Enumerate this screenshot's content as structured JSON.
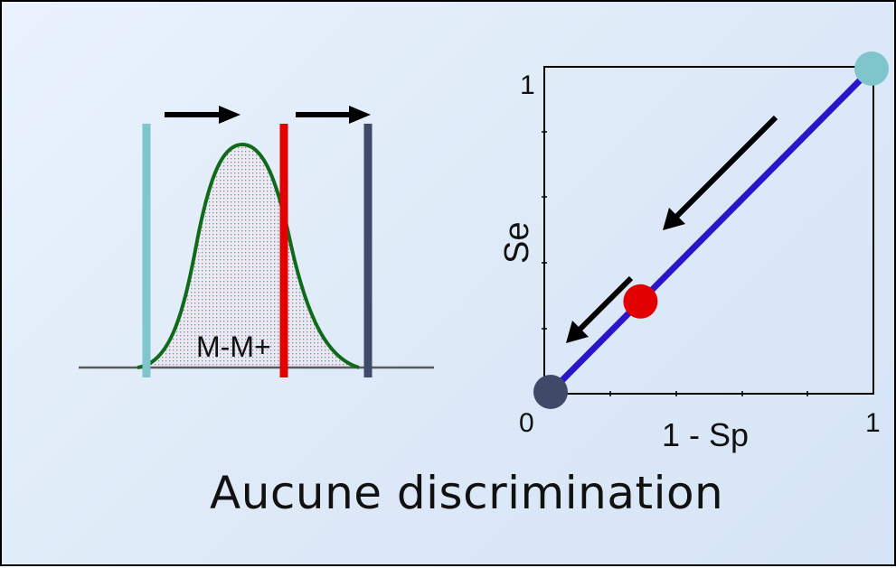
{
  "caption": "Aucune discrimination",
  "distribution": {
    "overlap_label": "M-M+",
    "colors": {
      "curve": "#0f6a1a",
      "fill_dots": "#e06a6a",
      "left_threshold": "#7ec5cc",
      "middle_threshold": "#e30000",
      "right_threshold": "#3e4a68",
      "arrows": "#000000",
      "baseline": "#5a5a5a"
    }
  },
  "roc": {
    "y_axis_label": "Se",
    "x_axis_label": "1 - Sp",
    "y_tick_top": "1",
    "origin_tick": "0",
    "x_tick_right": "1",
    "points": [
      {
        "x": 0,
        "y": 0,
        "color": "#3e4a68"
      },
      {
        "x": 0.28,
        "y": 0.28,
        "color": "#e30000"
      },
      {
        "x": 1,
        "y": 1,
        "color": "#7ec5cc"
      }
    ],
    "diagonal_color": "#2a16c8",
    "arrow_color": "#000000"
  }
}
